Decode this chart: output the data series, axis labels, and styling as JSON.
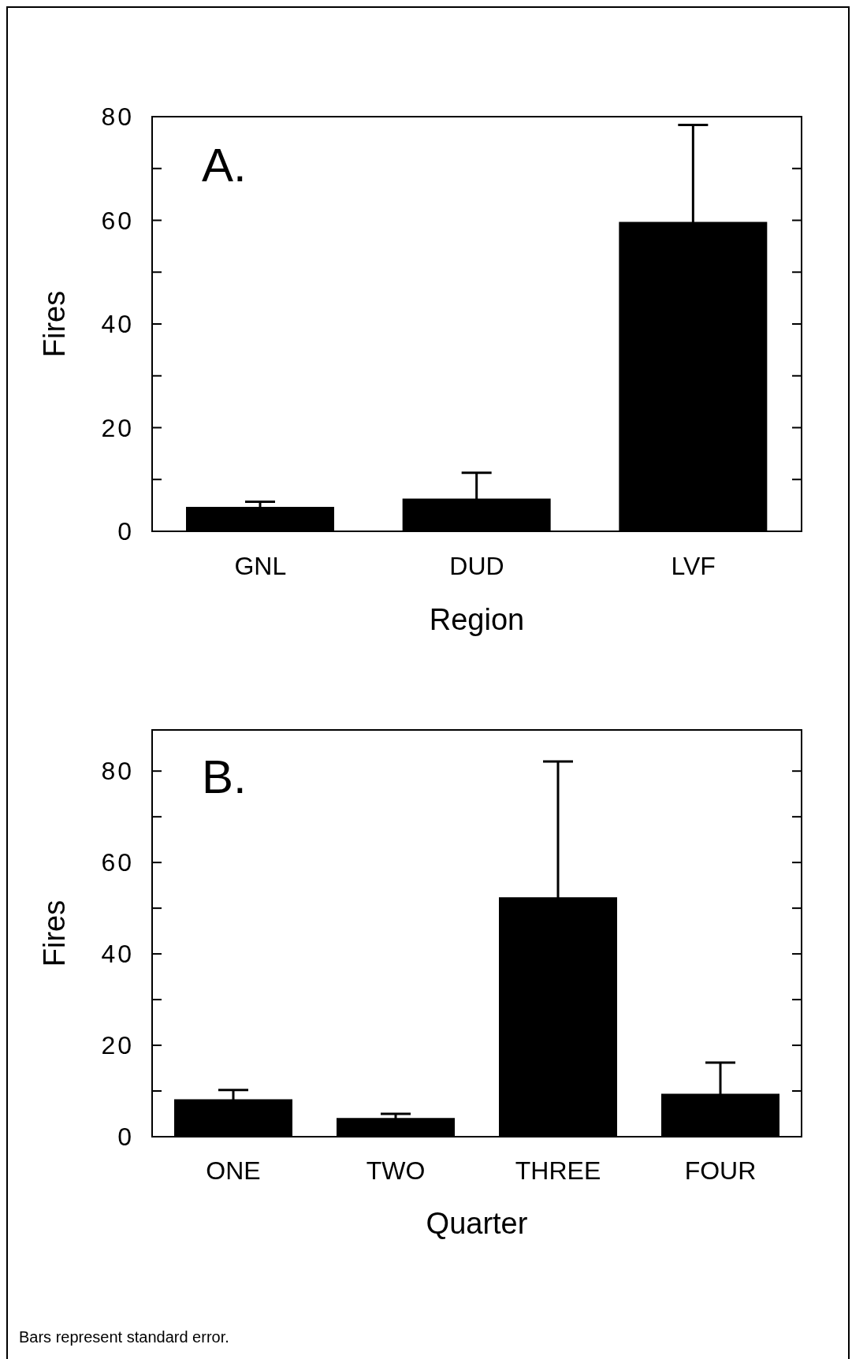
{
  "chart_data": [
    {
      "type": "bar",
      "title": "A.",
      "xlabel": "Region",
      "ylabel": "Fires",
      "categories": [
        "GNL",
        "DUD",
        "LVF"
      ],
      "values": [
        4.7,
        6.3,
        59.7
      ],
      "errors": [
        1.0,
        5.0,
        18.7
      ],
      "color": "#000000",
      "ylim": [
        0,
        80
      ],
      "yticks": [
        0,
        {
          "value": 10,
          "label": null
        },
        20,
        {
          "value": 30,
          "label": null
        },
        40,
        {
          "value": 50,
          "label": null
        },
        60,
        {
          "value": 70,
          "label": null
        },
        80
      ]
    },
    {
      "type": "bar",
      "title": "B.",
      "xlabel": "Quarter",
      "ylabel": "Fires",
      "categories": [
        "ONE",
        "TWO",
        "THREE",
        "FOUR"
      ],
      "values": [
        8.2,
        4.1,
        52.4,
        9.4
      ],
      "errors": [
        2.0,
        0.9,
        29.7,
        6.8
      ],
      "color": "#000000",
      "ylim": [
        0,
        89
      ],
      "yticks": [
        0,
        {
          "value": 10,
          "label": null
        },
        20,
        {
          "value": 30,
          "label": null
        },
        40,
        {
          "value": 50,
          "label": null
        },
        60,
        {
          "value": 70,
          "label": null
        },
        80
      ],
      "annotations": [
        "Bars represent standard error."
      ]
    }
  ]
}
